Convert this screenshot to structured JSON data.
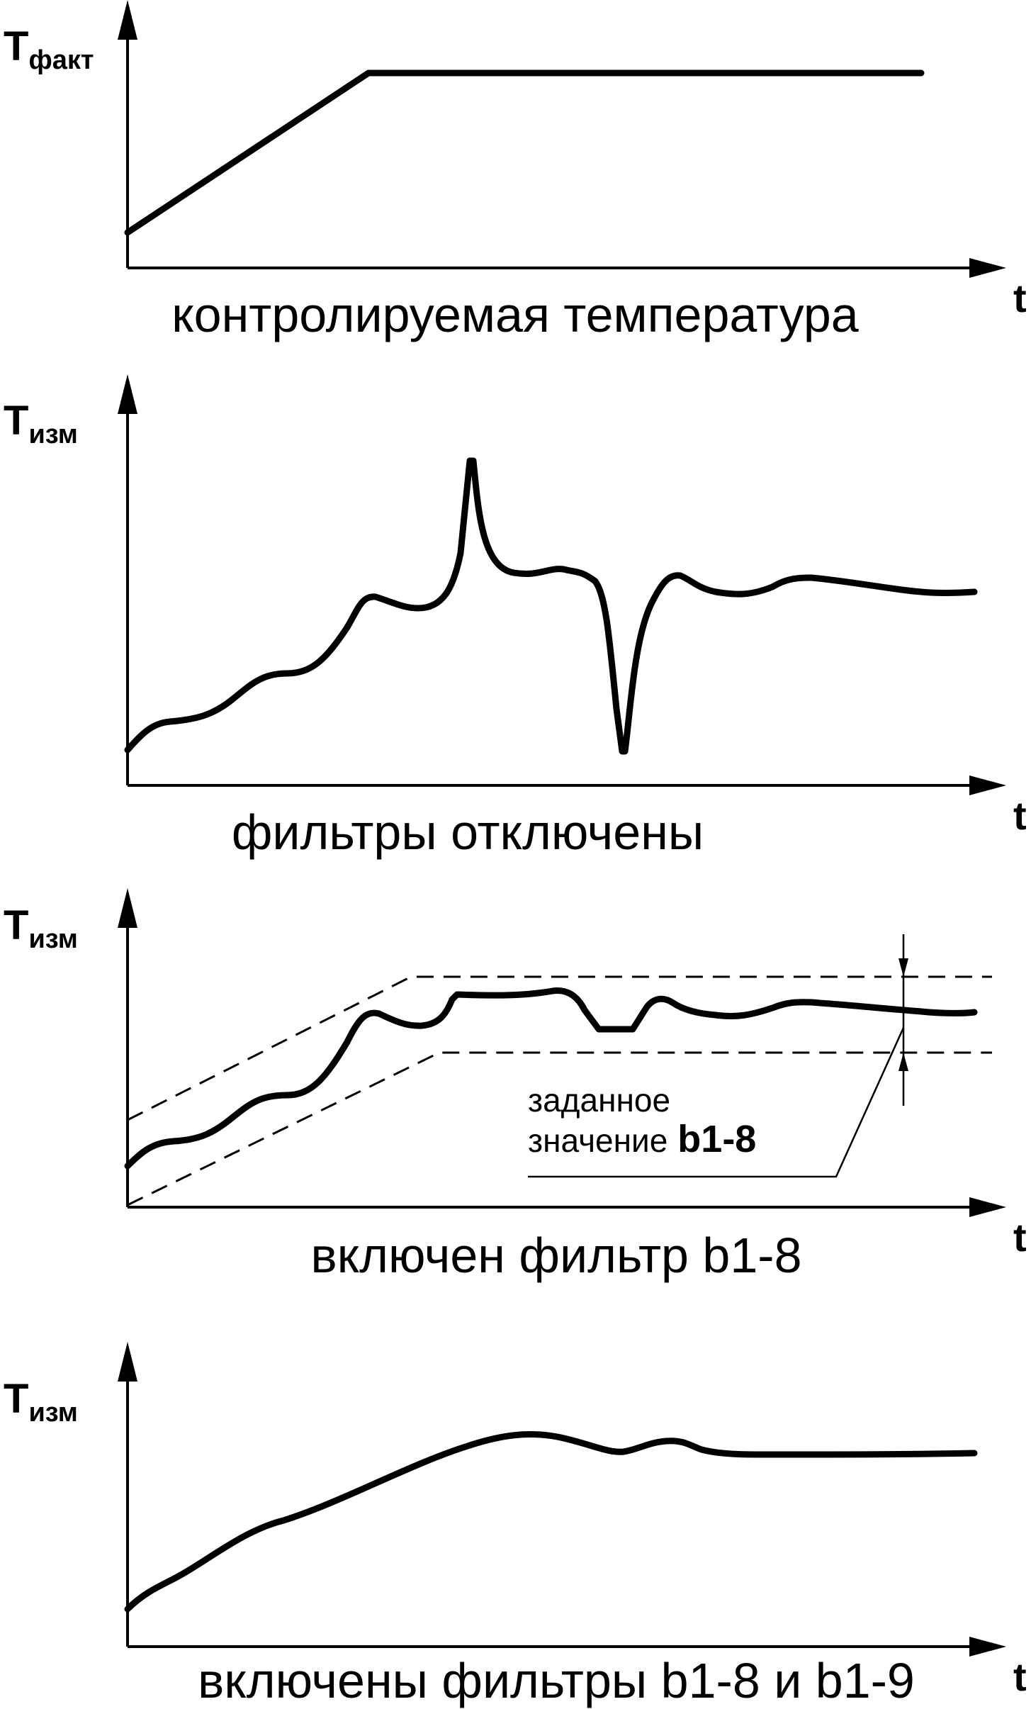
{
  "panels": [
    {
      "y_label": "T",
      "y_label_sub": "факт",
      "x_label": "t",
      "caption": "контролируемая температура"
    },
    {
      "y_label": "T",
      "y_label_sub": "изм",
      "x_label": "t",
      "caption": "фильтры отключены"
    },
    {
      "y_label": "T",
      "y_label_sub": "изм",
      "x_label": "t",
      "caption": "включен фильтр b1-8",
      "annotation": {
        "line1": "заданное",
        "line2": "значение",
        "param": "b1-8"
      }
    },
    {
      "y_label": "T",
      "y_label_sub": "изм",
      "x_label": "t",
      "caption": "включены фильтры b1-8 и b1-9"
    }
  ]
}
